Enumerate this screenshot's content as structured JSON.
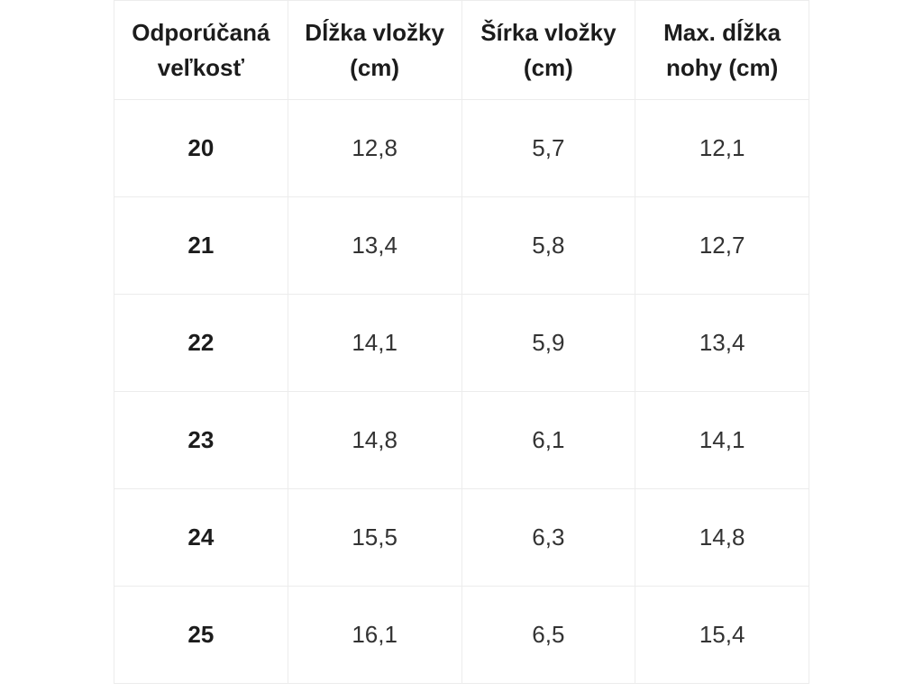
{
  "page": {
    "background": "#ffffff",
    "border_color": "#ececec",
    "header_text_color": "#1c1c1c",
    "cell_text_color": "#333333"
  },
  "table": {
    "columns": [
      {
        "line1": "Odporúčaná",
        "line2": "veľkosť"
      },
      {
        "line1": "Dĺžka vložky",
        "line2": "(cm)"
      },
      {
        "line1": "Šírka vložky",
        "line2": "(cm)"
      },
      {
        "line1": "Max. dĺžka",
        "line2": "nohy (cm)"
      }
    ],
    "rows": [
      [
        "20",
        "12,8",
        "5,7",
        "12,1"
      ],
      [
        "21",
        "13,4",
        "5,8",
        "12,7"
      ],
      [
        "22",
        "14,1",
        "5,9",
        "13,4"
      ],
      [
        "23",
        "14,8",
        "6,1",
        "14,1"
      ],
      [
        "24",
        "15,5",
        "6,3",
        "14,8"
      ],
      [
        "25",
        "16,1",
        "6,5",
        "15,4"
      ]
    ]
  },
  "chart_data": {
    "type": "table",
    "title": "",
    "columns": [
      "Odporúčaná veľkosť",
      "Dĺžka vložky (cm)",
      "Šírka vložky (cm)",
      "Max. dĺžka nohy (cm)"
    ],
    "rows": [
      [
        "20",
        "12,8",
        "5,7",
        "12,1"
      ],
      [
        "21",
        "13,4",
        "5,8",
        "12,7"
      ],
      [
        "22",
        "14,1",
        "5,9",
        "13,4"
      ],
      [
        "23",
        "14,8",
        "6,1",
        "14,1"
      ],
      [
        "24",
        "15,5",
        "6,3",
        "14,8"
      ],
      [
        "25",
        "16,1",
        "6,5",
        "15,4"
      ]
    ],
    "notes": "Shoe size chart: recommended size vs insole length (cm), insole width (cm), max foot length (cm). Decimal comma formatting."
  }
}
